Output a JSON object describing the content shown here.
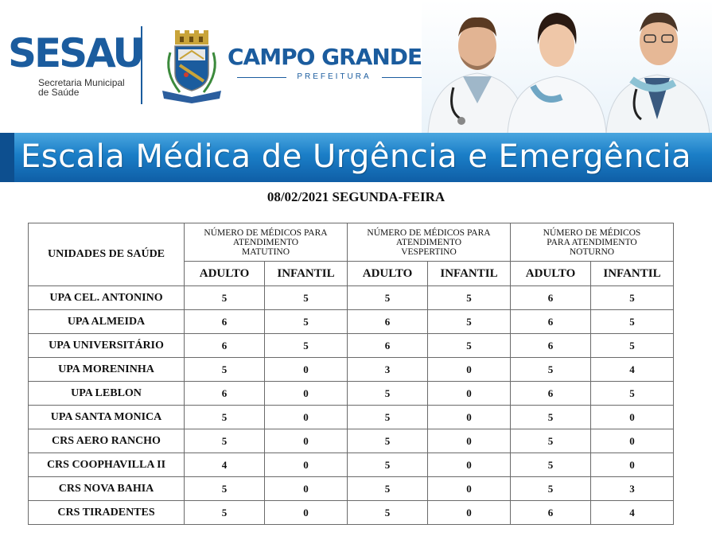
{
  "header": {
    "sesau_logo_text": "SESAU",
    "sesau_subtitle_line1": "Secretaria Municipal",
    "sesau_subtitle_line2": "de Saúde",
    "city_title": "CAMPO GRANDE",
    "city_subtitle": "PREFEITURA",
    "crest_icon": "city-coat-of-arms-icon",
    "colors": {
      "brand_blue": "#1b5c9e",
      "banner_blue": "#1a7ec7"
    }
  },
  "banner": {
    "title": "Escala Médica de Urgência e Emergência"
  },
  "date": "08/02/2021 SEGUNDA-FEIRA",
  "table": {
    "unit_header": "UNIDADES DE SAÚDE",
    "groups": [
      {
        "line1": "NÚMERO DE MÉDICOS PARA",
        "line2": "ATENDIMENTO",
        "line3": "MATUTINO"
      },
      {
        "line1": "NÚMERO DE MÉDICOS PARA",
        "line2": "ATENDIMENTO",
        "line3": "VESPERTINO"
      },
      {
        "line1": "NÚMERO DE MÉDICOS",
        "line2": "PARA ATENDIMENTO",
        "line3": "NOTURNO"
      }
    ],
    "sub_headers": [
      "ADULTO",
      "INFANTIL",
      "ADULTO",
      "INFANTIL",
      "ADULTO",
      "INFANTIL"
    ],
    "rows": [
      {
        "unit": "UPA CEL. ANTONINO",
        "values": [
          "5",
          "5",
          "5",
          "5",
          "6",
          "5"
        ]
      },
      {
        "unit": "UPA ALMEIDA",
        "values": [
          "6",
          "5",
          "6",
          "5",
          "6",
          "5"
        ]
      },
      {
        "unit": "UPA UNIVERSITÁRIO",
        "values": [
          "6",
          "5",
          "6",
          "5",
          "6",
          "5"
        ]
      },
      {
        "unit": "UPA MORENINHA",
        "values": [
          "5",
          "0",
          "3",
          "0",
          "5",
          "4"
        ]
      },
      {
        "unit": "UPA LEBLON",
        "values": [
          "6",
          "0",
          "5",
          "0",
          "6",
          "5"
        ]
      },
      {
        "unit": "UPA SANTA MONICA",
        "values": [
          "5",
          "0",
          "5",
          "0",
          "5",
          "0"
        ]
      },
      {
        "unit": "CRS AERO RANCHO",
        "values": [
          "5",
          "0",
          "5",
          "0",
          "5",
          "0"
        ]
      },
      {
        "unit": "CRS COOPHAVILLA II",
        "values": [
          "4",
          "0",
          "5",
          "0",
          "5",
          "0"
        ]
      },
      {
        "unit": "CRS NOVA BAHIA",
        "values": [
          "5",
          "0",
          "5",
          "0",
          "5",
          "3"
        ]
      },
      {
        "unit": "CRS TIRADENTES",
        "values": [
          "5",
          "0",
          "5",
          "0",
          "6",
          "4"
        ]
      }
    ]
  }
}
